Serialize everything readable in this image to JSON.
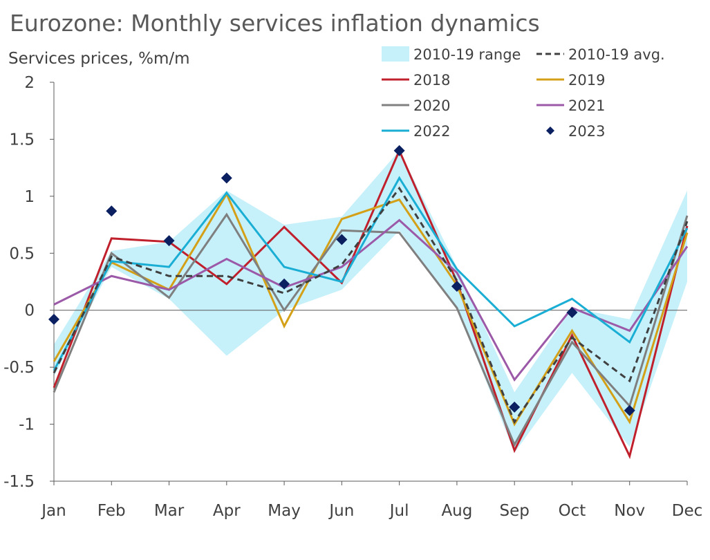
{
  "chart_data": {
    "type": "line",
    "title": "Eurozone: Monthly services inflation dynamics",
    "ylabel": "Services prices, %m/m",
    "xlabel": "",
    "ylim": [
      -1.5,
      2
    ],
    "yticks": [
      2,
      1.5,
      1,
      0.5,
      0,
      -0.5,
      -1,
      -1.5
    ],
    "categories": [
      "Jan",
      "Feb",
      "Mar",
      "Apr",
      "May",
      "Jun",
      "Jul",
      "Aug",
      "Sep",
      "Oct",
      "Nov",
      "Dec"
    ],
    "range": {
      "name": "2010-19 range",
      "color": "#c6f0fa",
      "low": [
        -0.58,
        0.38,
        0.1,
        -0.4,
        0.0,
        0.18,
        0.7,
        0.02,
        -1.25,
        -0.55,
        -1.2,
        0.25
      ],
      "high": [
        -0.3,
        0.52,
        0.6,
        1.05,
        0.75,
        0.82,
        1.4,
        0.38,
        -0.72,
        0.02,
        -0.08,
        1.05
      ]
    },
    "series": [
      {
        "name": "2018",
        "color": "#c0202c",
        "style": "line",
        "values": [
          -0.68,
          0.63,
          0.6,
          0.23,
          0.73,
          0.24,
          1.4,
          0.25,
          -1.23,
          -0.22,
          -1.28,
          0.74
        ]
      },
      {
        "name": "2019",
        "color": "#d4a017",
        "style": "line",
        "values": [
          -0.45,
          0.42,
          0.18,
          1.02,
          -0.14,
          0.8,
          0.97,
          0.22,
          -1.0,
          -0.18,
          -0.98,
          0.68
        ]
      },
      {
        "name": "2020",
        "color": "#7f7f7f",
        "style": "line",
        "values": [
          -0.72,
          0.5,
          0.11,
          0.84,
          0.0,
          0.7,
          0.68,
          0.02,
          -1.18,
          -0.28,
          -0.84,
          0.83
        ]
      },
      {
        "name": "2021",
        "color": "#9b59a8",
        "style": "line",
        "values": [
          0.05,
          0.3,
          0.18,
          0.45,
          0.2,
          0.38,
          0.79,
          0.33,
          -0.61,
          0.02,
          -0.18,
          0.56
        ]
      },
      {
        "name": "2022",
        "color": "#1aaed4",
        "style": "line",
        "values": [
          -0.53,
          0.43,
          0.38,
          1.03,
          0.38,
          0.25,
          1.16,
          0.36,
          -0.14,
          0.1,
          -0.28,
          0.72
        ]
      },
      {
        "name": "2010-19 avg.",
        "color": "#404040",
        "style": "dash",
        "values": [
          -0.55,
          0.47,
          0.3,
          0.3,
          0.15,
          0.4,
          1.07,
          0.26,
          -0.98,
          -0.24,
          -0.62,
          0.78
        ]
      },
      {
        "name": "2023",
        "color": "#0a2060",
        "style": "marker",
        "values": [
          -0.08,
          0.87,
          0.61,
          1.16,
          0.23,
          0.62,
          1.4,
          0.21,
          -0.85,
          -0.02,
          -0.88,
          null
        ]
      }
    ],
    "legend": [
      "2010-19 range",
      "2010-19 avg.",
      "2018",
      "2019",
      "2020",
      "2021",
      "2022",
      "2023"
    ],
    "legend_position": "top-right",
    "grid": false
  }
}
